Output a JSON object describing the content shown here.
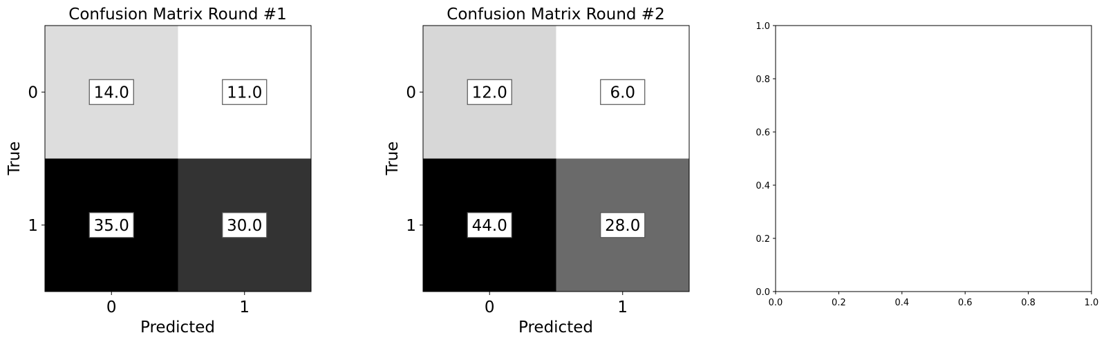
{
  "chart_data": [
    {
      "type": "heatmap",
      "title": "Confusion Matrix Round #1",
      "xlabel": "Predicted",
      "ylabel": "True",
      "x_categories": [
        "0",
        "1"
      ],
      "y_categories": [
        "0",
        "1"
      ],
      "cell_labels": [
        [
          "14.0",
          "11.0"
        ],
        [
          "35.0",
          "30.0"
        ]
      ],
      "values": [
        [
          14.0,
          11.0
        ],
        [
          35.0,
          30.0
        ]
      ],
      "colormap": "Greys",
      "cell_colors": [
        [
          "#dddddd",
          "#ffffff"
        ],
        [
          "#000000",
          "#333333"
        ]
      ]
    },
    {
      "type": "heatmap",
      "title": "Confusion Matrix Round #2",
      "xlabel": "Predicted",
      "ylabel": "True",
      "x_categories": [
        "0",
        "1"
      ],
      "y_categories": [
        "0",
        "1"
      ],
      "cell_labels": [
        [
          "12.0",
          "6.0"
        ],
        [
          "44.0",
          "28.0"
        ]
      ],
      "values": [
        [
          12.0,
          6.0
        ],
        [
          44.0,
          28.0
        ]
      ],
      "colormap": "Greys",
      "cell_colors": [
        [
          "#d7d7d7",
          "#ffffff"
        ],
        [
          "#000000",
          "#6a6a6a"
        ]
      ]
    },
    {
      "type": "scatter",
      "title": "",
      "xlabel": "",
      "ylabel": "",
      "xlim": [
        0.0,
        1.0
      ],
      "ylim": [
        0.0,
        1.0
      ],
      "x_ticks": [
        "0.0",
        "0.2",
        "0.4",
        "0.6",
        "0.8",
        "1.0"
      ],
      "y_ticks": [
        "0.0",
        "0.2",
        "0.4",
        "0.6",
        "0.8",
        "1.0"
      ],
      "series": []
    }
  ]
}
